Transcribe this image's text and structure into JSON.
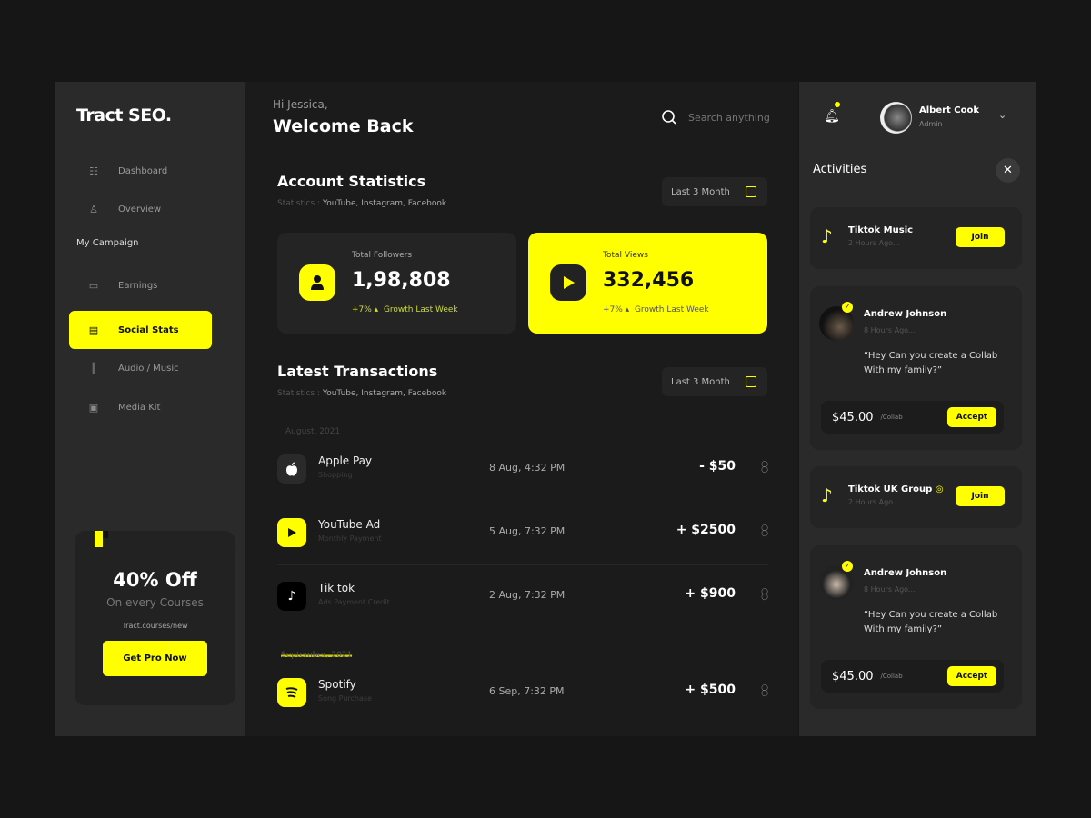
{
  "brand": "Tract SEO.",
  "sidebar": {
    "items": [
      {
        "label": "Dashboard",
        "icon": "sliders-icon"
      },
      {
        "label": "Overview",
        "icon": "user-icon"
      },
      {
        "label": "Earnings",
        "icon": "wallet-icon"
      },
      {
        "label": "Social Stats",
        "icon": "chat-icon",
        "active": true
      },
      {
        "label": "Audio / Music",
        "icon": "waveform-icon"
      },
      {
        "label": "Media Kit",
        "icon": "box-icon"
      }
    ],
    "section": "My Campaign"
  },
  "promo": {
    "title": "40% Off",
    "subtitle": "On every Courses",
    "url": "Tract.courses/new",
    "button": "Get Pro Now"
  },
  "header": {
    "greeting": "Hi Jessica,",
    "welcome": "Welcome Back",
    "search_placeholder": "Search anything"
  },
  "account": {
    "title": "Account Statistics",
    "sub_label": "Statistics :",
    "sub_value": "YouTube, Instagram, Facebook",
    "period": "Last 3 Month",
    "stats": [
      {
        "label": "Total Followers",
        "value": "1,98,808",
        "growth": "+7% ▴",
        "growth_label": "Growth Last Week"
      },
      {
        "label": "Total Views",
        "value": "332,456",
        "growth": "+7% ▴",
        "growth_label": "Growth Last Week"
      }
    ]
  },
  "transactions": {
    "title": "Latest Transactions",
    "sub_label": "Statistics :",
    "sub_value": "YouTube, Instagram, Facebook",
    "period": "Last 3 Month",
    "groups": [
      "August, 2021",
      "September, 2021"
    ],
    "rows": [
      {
        "name": "Apple Pay",
        "desc": "Shopping",
        "date": "8 Aug, 4:32 PM",
        "amount": "- $50"
      },
      {
        "name": "YouTube Ad",
        "desc": "Monthly Payment",
        "date": "5 Aug, 7:32 PM",
        "amount": "+ $2500"
      },
      {
        "name": "Tik tok",
        "desc": "Ads Payment Credit",
        "date": "2 Aug, 7:32 PM",
        "amount": "+ $900"
      },
      {
        "name": "Spotify",
        "desc": "Song Purchase",
        "date": "6 Sep, 7:32 PM",
        "amount": "+ $500"
      }
    ]
  },
  "user": {
    "name": "Albert Cook",
    "role": "Admin"
  },
  "activities": {
    "title": "Activities",
    "items": [
      {
        "title": "Tiktok Music",
        "time": "2 Hours Ago...",
        "button": "Join"
      },
      {
        "name": "Andrew Johnson",
        "time": "8 Hours Ago...",
        "message": "“Hey Can you create a Collab With my family?”",
        "price": "$45.00",
        "unit": "/Collab",
        "button": "Accept"
      },
      {
        "title": "Tiktok UK Group",
        "time": "2 Hours Ago...",
        "button": "Join"
      },
      {
        "name": "Andrew Johnson",
        "time": "8 Hours Ago...",
        "message": "“Hey Can you create a Collab With my family?”",
        "price": "$45.00",
        "unit": "/Collab",
        "button": "Accept"
      }
    ]
  },
  "colors": {
    "accent": "#ffff00",
    "panel": "#2a2a2a",
    "main": "#1b1b1b"
  }
}
